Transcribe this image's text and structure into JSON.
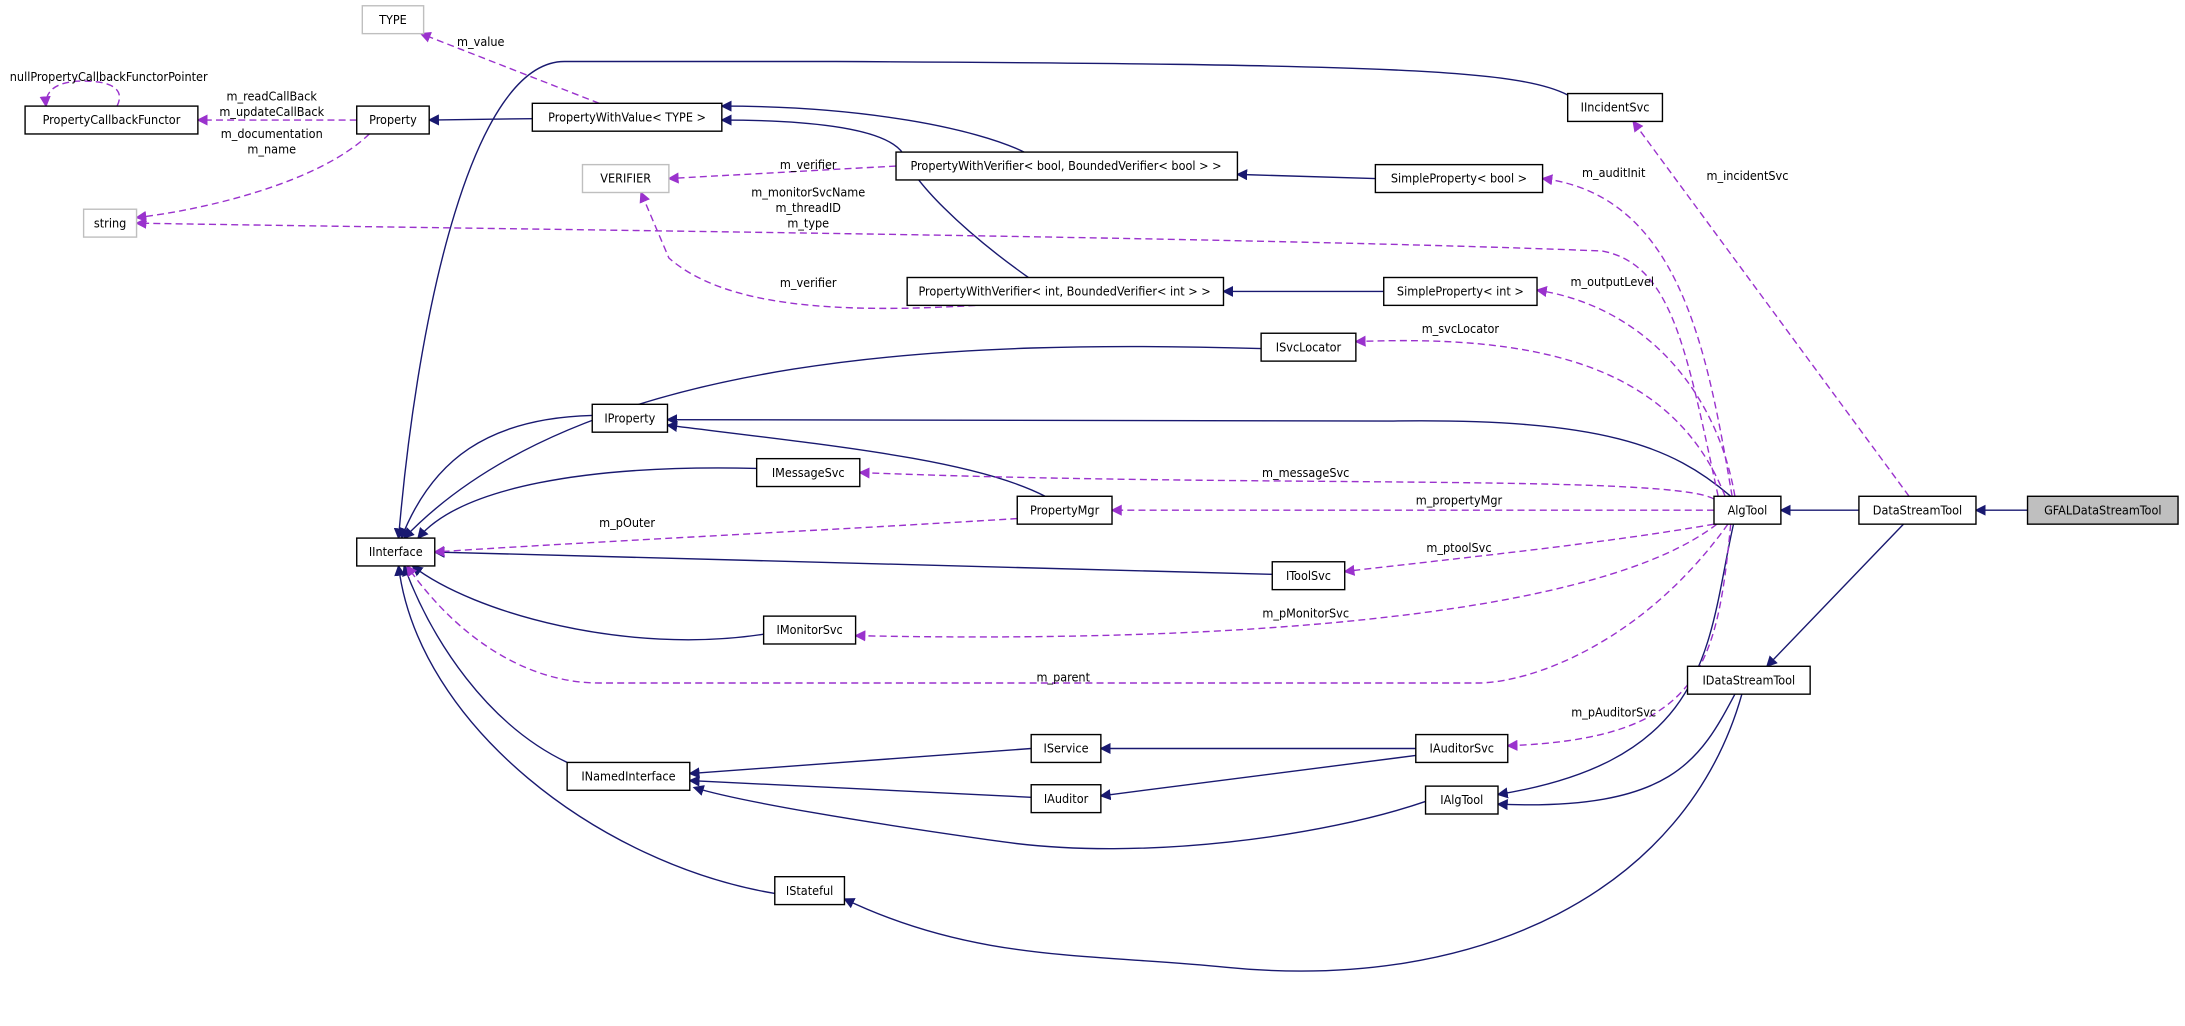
{
  "colors": {
    "inheritance": "#191970",
    "usage": "#9a32cd",
    "focus_fill": "#bfbfbf"
  },
  "nodes": {
    "type": "TYPE",
    "pcf": "PropertyCallbackFunctor",
    "property": "Property",
    "pwv": "PropertyWithValue< TYPE >",
    "string": "string",
    "verifier": "VERIFIER",
    "pwv_bool": "PropertyWithVerifier< bool, BoundedVerifier< bool > >",
    "pwv_int": "PropertyWithVerifier< int, BoundedVerifier< int > >",
    "incident": "IIncidentSvc",
    "sp_bool": "SimpleProperty< bool >",
    "sp_int": "SimpleProperty< int >",
    "svclocator": "ISvcLocator",
    "iproperty": "IProperty",
    "msgsvc": "IMessageSvc",
    "propmgr": "PropertyMgr",
    "algtool": "AlgTool",
    "dst": "DataStreamTool",
    "gfal": "GFALDataStreamTool",
    "iinterface": "IInterface",
    "toolsvc": "IToolSvc",
    "monitor": "IMonitorSvc",
    "idst": "IDataStreamTool",
    "iservice": "IService",
    "auditorsvc": "IAuditorSvc",
    "named": "INamedInterface",
    "iauditor": "IAuditor",
    "ialgtool": "IAlgTool",
    "stateful": "IStateful"
  },
  "labels": {
    "null_ptr": "nullPropertyCallbackFunctorPointer",
    "read_cb": "m_readCallBack",
    "update_cb": "m_updateCallBack",
    "documentation": "m_documentation",
    "name": "m_name",
    "value": "m_value",
    "verifier1": "m_verifier",
    "monitor_name": "m_monitorSvcName",
    "thread_id": "m_threadID",
    "type": "m_type",
    "verifier2": "m_verifier",
    "audit_init": "m_auditInit",
    "incident_svc": "m_incidentSvc",
    "output_level": "m_outputLevel",
    "svc_locator": "m_svcLocator",
    "message_svc": "m_messageSvc",
    "property_mgr": "m_propertyMgr",
    "p_outer": "m_pOuter",
    "ptool_svc": "m_ptoolSvc",
    "p_monitor_svc": "m_pMonitorSvc",
    "parent": "m_parent",
    "p_auditor_svc": "m_pAuditorSvc"
  }
}
